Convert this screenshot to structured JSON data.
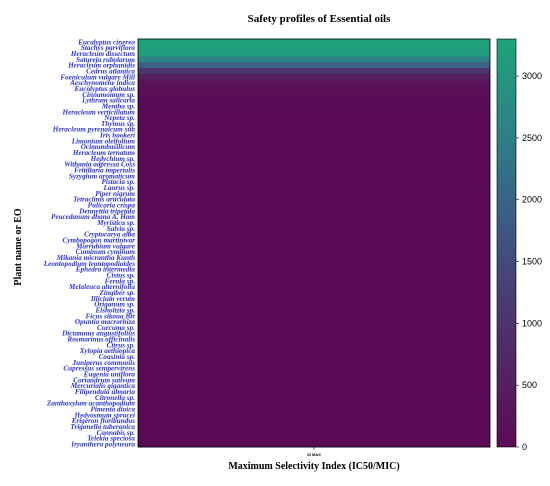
{
  "chart_data": {
    "type": "heatmap",
    "title": "Safety profiles of  Essential oils",
    "xlabel": "Maximum Selectivity Index (IC50/MIC)",
    "ylabel": "Plant name or EO",
    "x_categories": [
      "SI MAX"
    ],
    "colorbar": {
      "min": 0,
      "max": 3300,
      "ticks": [
        0,
        500,
        1000,
        1500,
        2000,
        2500,
        3000
      ],
      "colors": {
        "low": "#5a0a55",
        "mid": "#3d5a84",
        "high": "#1fa37a"
      }
    },
    "rows": [
      {
        "label": "Eucalyptus cinerea",
        "value": 3300
      },
      {
        "label": "Stachys parviflora",
        "value": 3250
      },
      {
        "label": "Heracleum dissectum",
        "value": 3150
      },
      {
        "label": "Satureja rubolarum",
        "value": 2600
      },
      {
        "label": "Heracleum orphanidis",
        "value": 1900
      },
      {
        "label": "Cedrus atlantica",
        "value": 1000
      },
      {
        "label": "Foeniculum vulgare Mill",
        "value": 450
      },
      {
        "label": "Aeschynomene indica",
        "value": 200
      },
      {
        "label": "Eucalyptus globulus",
        "value": 120
      },
      {
        "label": "Cinnamomum sp.",
        "value": 80
      },
      {
        "label": "Lythrum salicaria",
        "value": 50
      },
      {
        "label": "Mentha sp.",
        "value": 30
      },
      {
        "label": "Heracleum verticillatum",
        "value": 10
      },
      {
        "label": "Nepeta sp.",
        "value": 10
      },
      {
        "label": "Thymus sp.",
        "value": 10
      },
      {
        "label": "Heracleum pyrenaicum sub",
        "value": 10
      },
      {
        "label": "Iris hookeri",
        "value": 10
      },
      {
        "label": "Limonium oleifolium",
        "value": 10
      },
      {
        "label": "Ocimumbasilicum",
        "value": 10
      },
      {
        "label": "Heracleum ternatum",
        "value": 10
      },
      {
        "label": "Hedychium sp.",
        "value": 10
      },
      {
        "label": "Withania adpressa Coss",
        "value": 10
      },
      {
        "label": "Fritillaria imperialis",
        "value": 10
      },
      {
        "label": "Syzygium aromaticum",
        "value": 10
      },
      {
        "label": "Pistacia sp.",
        "value": 10
      },
      {
        "label": "Laurus sp.",
        "value": 10
      },
      {
        "label": "Piper nigrum",
        "value": 10
      },
      {
        "label": "Tetraclinis articulata",
        "value": 10
      },
      {
        "label": "Pulicaria crispa",
        "value": 10
      },
      {
        "label": "Dennettia tripetala",
        "value": 10
      },
      {
        "label": "Peucedanum dhana A. Ham",
        "value": 10
      },
      {
        "label": "Myristica sp.",
        "value": 10
      },
      {
        "label": "Salvia sp.",
        "value": 10
      },
      {
        "label": "Cryptocarya alba",
        "value": 10
      },
      {
        "label": "Cymbopogon martinivar",
        "value": 10
      },
      {
        "label": "Marrubium vulgare",
        "value": 10
      },
      {
        "label": "Cuminum cyminum",
        "value": 10
      },
      {
        "label": "Mikania micrantha Kunth",
        "value": 10
      },
      {
        "label": "Leontopodium leontopodioides",
        "value": 10
      },
      {
        "label": "Ephedra intermedia",
        "value": 10
      },
      {
        "label": "Cistus sp.",
        "value": 10
      },
      {
        "label": "Ferula sp.",
        "value": 10
      },
      {
        "label": "Melaleuca alternifolia",
        "value": 10
      },
      {
        "label": "Zingiber sp.",
        "value": 10
      },
      {
        "label": "Illicium verum",
        "value": 10
      },
      {
        "label": "Origanum sp.",
        "value": 10
      },
      {
        "label": "Elsholtzia sp.",
        "value": 10
      },
      {
        "label": "Ficus sikoua Blr",
        "value": 10
      },
      {
        "label": "Opuntia macrorhiza",
        "value": 10
      },
      {
        "label": "Curcuma sp.",
        "value": 10
      },
      {
        "label": "Dictamnus angustifolius",
        "value": 10
      },
      {
        "label": "Rosmarinus officinalis",
        "value": 10
      },
      {
        "label": "Citrus sp.",
        "value": 10
      },
      {
        "label": "Xylopia aethiopica",
        "value": 10
      },
      {
        "label": "Coasinia sp.",
        "value": 10
      },
      {
        "label": "Juniperus communis",
        "value": 10
      },
      {
        "label": "Cupressus sempervirens",
        "value": 10
      },
      {
        "label": "Eugenia uniflora",
        "value": 10
      },
      {
        "label": "Coriandrum sativum",
        "value": 10
      },
      {
        "label": "Mercurialis gigantica",
        "value": 10
      },
      {
        "label": "Filipendula ulmaria",
        "value": 10
      },
      {
        "label": "Citronella sp.",
        "value": 10
      },
      {
        "label": "Zanthoxylum acanthopodium",
        "value": 10
      },
      {
        "label": "Pimenta dioica",
        "value": 10
      },
      {
        "label": "Hedyosmum sprucei",
        "value": 10
      },
      {
        "label": "Erigeron floribundus",
        "value": 10
      },
      {
        "label": "Trigonella tuberanica",
        "value": 10
      },
      {
        "label": "Cannabis sp.",
        "value": 10
      },
      {
        "label": "Telekia speciosa",
        "value": 10
      },
      {
        "label": "Iryanthera polyneura",
        "value": 10
      }
    ]
  }
}
